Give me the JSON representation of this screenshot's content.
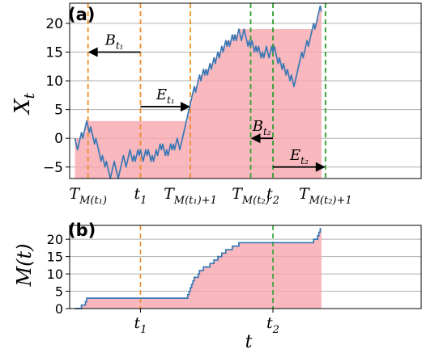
{
  "chart_data": [
    {
      "panel": "(a)",
      "type": "line",
      "ylabel_main": "X",
      "ylabel_sub": "t",
      "ylim": [
        -7,
        23.5
      ],
      "xlim": [
        -4,
        264
      ],
      "yticks": [
        -5,
        0,
        5,
        10,
        15,
        20
      ],
      "grid": "horizontal",
      "series_color": "#3a78b5",
      "running_max_fill": "#f6a6ae",
      "series": [
        {
          "values": [
            0,
            -1,
            -2,
            -1,
            0,
            1,
            0,
            1,
            2,
            3,
            2,
            1,
            2,
            1,
            0,
            -1,
            0,
            -1,
            -2,
            -3,
            -4,
            -3,
            -4,
            -5,
            -4,
            -5,
            -6,
            -7,
            -6,
            -5,
            -4,
            -5,
            -6,
            -7,
            -6,
            -5,
            -4,
            -3,
            -4,
            -5,
            -4,
            -3,
            -2,
            -3,
            -4,
            -3,
            -4,
            -3,
            -2,
            -3,
            -2,
            -3,
            -4,
            -3,
            -2,
            -3,
            -2,
            -3,
            -4,
            -3,
            -4,
            -3,
            -2,
            -3,
            -2,
            -1,
            -2,
            -1,
            -2,
            -3,
            -2,
            -3,
            -2,
            -1,
            -2,
            -1,
            -2,
            -1,
            0,
            -1,
            -2,
            -1,
            0,
            1,
            2,
            3,
            4,
            5,
            6,
            7,
            8,
            9,
            8,
            9,
            10,
            11,
            10,
            11,
            12,
            11,
            12,
            11,
            12,
            13,
            12,
            13,
            14,
            13,
            14,
            15,
            14,
            15,
            16,
            15,
            16,
            17,
            16,
            17,
            16,
            17,
            18,
            17,
            18,
            17,
            18,
            19,
            18,
            17,
            18,
            19,
            18,
            17,
            16,
            17,
            16,
            17,
            16,
            15,
            16,
            15,
            16,
            15,
            14,
            15,
            14,
            15,
            16,
            15,
            14,
            15,
            16,
            15,
            16,
            15,
            14,
            13,
            14,
            13,
            12,
            13,
            12,
            11,
            12,
            11,
            10,
            11,
            10,
            9,
            10,
            11,
            12,
            13,
            14,
            15,
            14,
            15,
            16,
            17,
            16,
            17,
            18,
            19,
            20,
            19,
            20,
            21,
            22,
            23,
            22
          ]
        }
      ],
      "markers": [
        {
          "x": 10,
          "color": "#f28c28",
          "label_main": "T",
          "label_sub": "M(t₁)"
        },
        {
          "x": 50,
          "color": "#f28c28",
          "label_main": "t",
          "label_sub": "1"
        },
        {
          "x": 88,
          "color": "#f28c28",
          "label_main": "T",
          "label_sub": "M(t₁)+1"
        },
        {
          "x": 134,
          "color": "#2ca02c",
          "label_main": "T",
          "label_sub": "M(t₂)"
        },
        {
          "x": 151,
          "color": "#2ca02c",
          "label_main": "t",
          "label_sub": "2"
        },
        {
          "x": 191,
          "color": "#2ca02c",
          "label_main": "T",
          "label_sub": "M(t₂)+1"
        }
      ],
      "arrows": [
        {
          "from_x": 50,
          "to_x": 10,
          "y": 15,
          "label_main": "B",
          "label_sub": "t₁"
        },
        {
          "from_x": 50,
          "to_x": 88,
          "y": 5.5,
          "label_main": "E",
          "label_sub": "t₁"
        },
        {
          "from_x": 151,
          "to_x": 134,
          "y": 0,
          "label_main": "B",
          "label_sub": "t₂"
        },
        {
          "from_x": 151,
          "to_x": 191,
          "y": -5,
          "label_main": "E",
          "label_sub": "t₂"
        }
      ]
    },
    {
      "panel": "(b)",
      "type": "area",
      "ylabel": "M(t)",
      "xlabel": "t",
      "ylim": [
        0,
        24
      ],
      "yticks": [
        0,
        5,
        10,
        15,
        20
      ],
      "grid": "horizontal",
      "xticks": [
        {
          "x": 50,
          "label_main": "t",
          "label_sub": "1"
        },
        {
          "x": 151,
          "label_main": "t",
          "label_sub": "2"
        }
      ]
    }
  ]
}
